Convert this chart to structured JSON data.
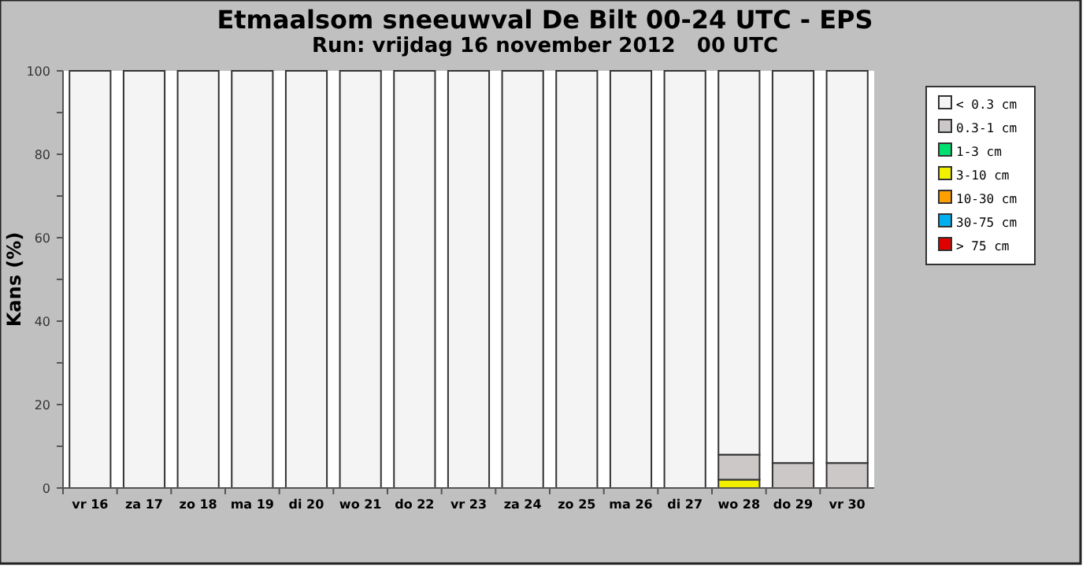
{
  "chart_data": {
    "type": "bar",
    "stacked": true,
    "title": "Etmaalsom sneeuwval De Bilt 00-24 UTC - EPS",
    "subtitle": "Run: vrijdag 16 november 2012   00 UTC",
    "ylabel": "Kans (%)",
    "categories": [
      "vr 16",
      "za 17",
      "zo 18",
      "ma 19",
      "di 20",
      "wo 21",
      "do 22",
      "vr 23",
      "za 24",
      "zo 25",
      "ma 26",
      "di 27",
      "wo 28",
      "do 29",
      "vr 30"
    ],
    "ylim": [
      0,
      100
    ],
    "yticks": [
      0,
      {
        "value": 10,
        "label": null
      },
      20,
      {
        "value": 30,
        "label": null
      },
      40,
      {
        "value": 50,
        "label": null
      },
      60,
      {
        "value": 70,
        "label": null
      },
      80,
      {
        "value": 90,
        "label": null
      },
      100
    ],
    "grid": false,
    "legend": "right",
    "series": [
      {
        "name": "> 75 cm",
        "color": "#e00000",
        "values": [
          0,
          0,
          0,
          0,
          0,
          0,
          0,
          0,
          0,
          0,
          0,
          0,
          0,
          0,
          0
        ]
      },
      {
        "name": "30-75 cm",
        "color": "#00b0f0",
        "values": [
          0,
          0,
          0,
          0,
          0,
          0,
          0,
          0,
          0,
          0,
          0,
          0,
          0,
          0,
          0
        ]
      },
      {
        "name": "10-30 cm",
        "color": "#ffa000",
        "values": [
          0,
          0,
          0,
          0,
          0,
          0,
          0,
          0,
          0,
          0,
          0,
          0,
          0,
          0,
          0
        ]
      },
      {
        "name": "3-10 cm",
        "color": "#f0f000",
        "values": [
          0,
          0,
          0,
          0,
          0,
          0,
          0,
          0,
          0,
          0,
          0,
          0,
          2,
          0,
          0
        ]
      },
      {
        "name": "1-3 cm",
        "color": "#00e070",
        "values": [
          0,
          0,
          0,
          0,
          0,
          0,
          0,
          0,
          0,
          0,
          0,
          0,
          0,
          0,
          0
        ]
      },
      {
        "name": "0.3-1 cm",
        "color": "#ccc8c8",
        "values": [
          0,
          0,
          0,
          0,
          0,
          0,
          0,
          0,
          0,
          0,
          0,
          0,
          6,
          6,
          6
        ]
      },
      {
        "name": "< 0.3 cm",
        "color": "#f4f4f4",
        "values": [
          100,
          100,
          100,
          100,
          100,
          100,
          100,
          100,
          100,
          100,
          100,
          100,
          92,
          94,
          94
        ]
      }
    ]
  }
}
